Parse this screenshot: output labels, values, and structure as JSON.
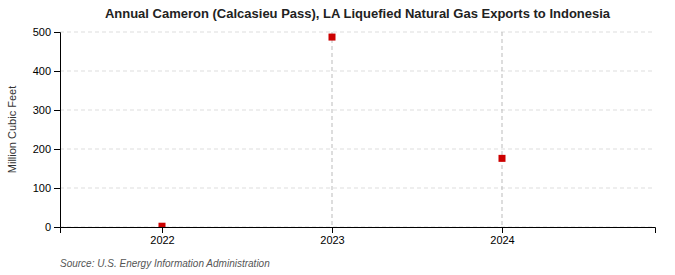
{
  "chart_data": {
    "type": "scatter",
    "title": "Annual Cameron (Calcasieu Pass), LA Liquefied Natural Gas Exports to Indonesia",
    "ylabel": "Million Cubic Feet",
    "source": "Source: U.S. Energy Information Administration",
    "x": [
      2022,
      2023,
      2024
    ],
    "values": [
      2,
      487,
      176
    ],
    "color": "#cc0000",
    "marker": "square",
    "xlim": [
      2021.4,
      2024.9
    ],
    "ylim": [
      0,
      500
    ],
    "xticks": [
      2022,
      2023,
      2024
    ],
    "yticks": [
      0,
      100,
      200,
      300,
      400,
      500
    ],
    "grid": true,
    "vlines": [
      2023,
      2024
    ]
  }
}
